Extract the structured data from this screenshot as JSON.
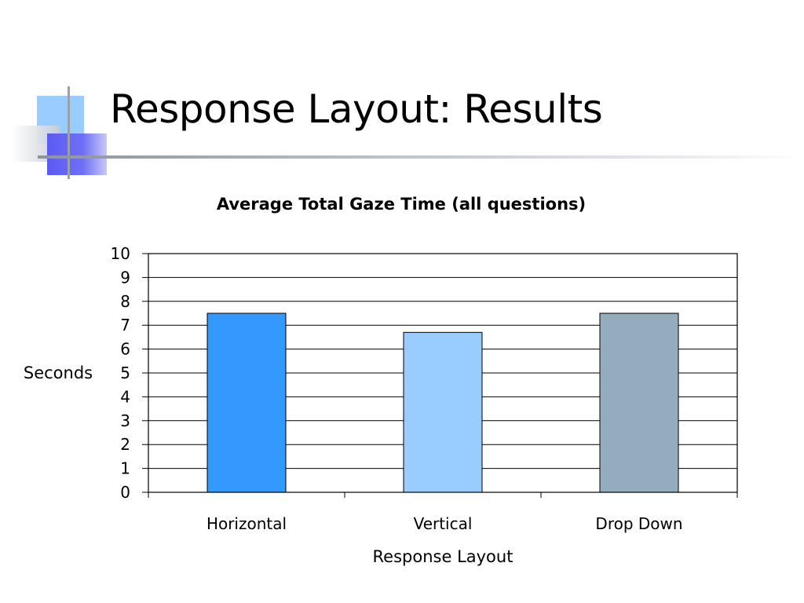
{
  "slide": {
    "title": "Response Layout: Results"
  },
  "chart_data": {
    "type": "bar",
    "title": "Average Total Gaze Time (all questions)",
    "xlabel": "Response Layout",
    "ylabel": "Seconds",
    "categories": [
      "Horizontal",
      "Vertical",
      "Drop Down"
    ],
    "values": [
      7.5,
      6.7,
      7.5
    ],
    "bar_colors": [
      "#3399ff",
      "#99ccff",
      "#93adbf"
    ],
    "ylim": [
      0,
      10
    ],
    "yticks": [
      0,
      1,
      2,
      3,
      4,
      5,
      6,
      7,
      8,
      9,
      10
    ],
    "grid": true,
    "legend": "none"
  }
}
